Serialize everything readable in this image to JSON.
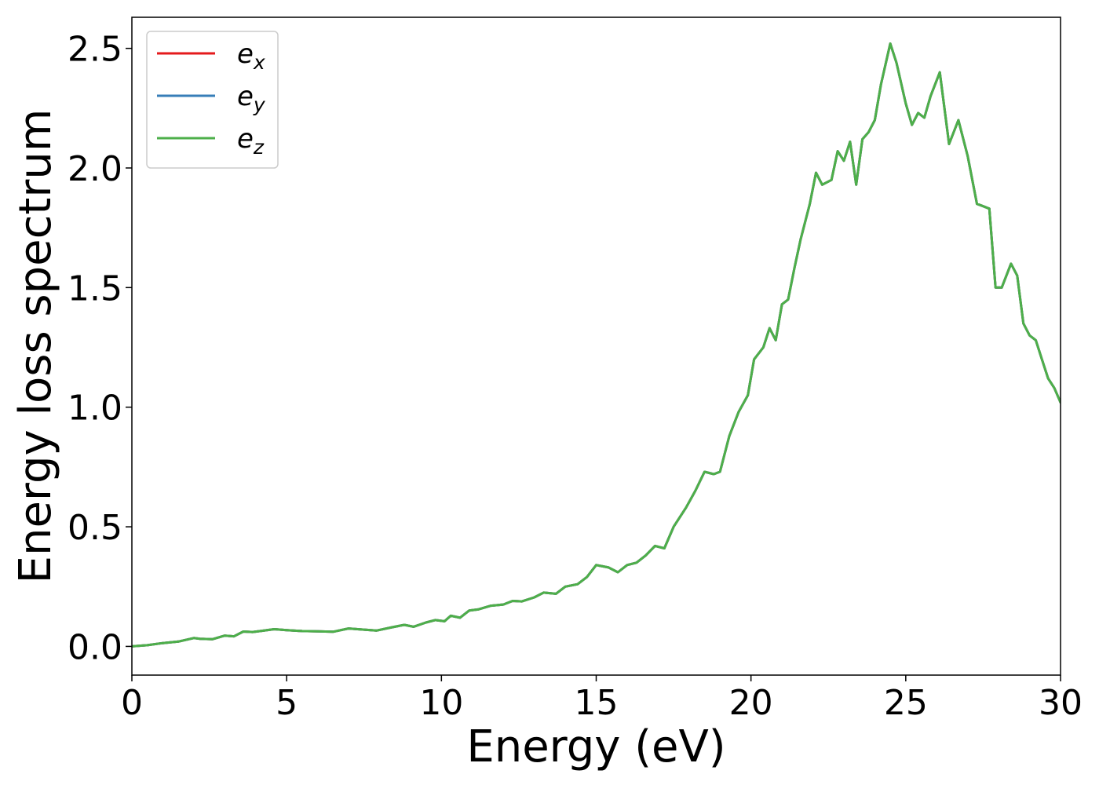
{
  "chart_data": {
    "type": "line",
    "title": "",
    "xlabel": "Energy (eV)",
    "ylabel": "Energy loss spectrum",
    "xlim": [
      0,
      30
    ],
    "ylim": [
      -0.12,
      2.63
    ],
    "xticks": [
      0,
      5,
      10,
      15,
      20,
      25,
      30
    ],
    "xtick_labels": [
      "0",
      "5",
      "10",
      "15",
      "20",
      "25",
      "30"
    ],
    "yticks": [
      0.0,
      0.5,
      1.0,
      1.5,
      2.0,
      2.5
    ],
    "ytick_labels": [
      "0.0",
      "0.5",
      "1.0",
      "1.5",
      "2.0",
      "2.5"
    ],
    "grid": false,
    "legend": {
      "placement": "top-left",
      "entries": [
        {
          "base": "e",
          "sub": "x",
          "color": "#e41a1c"
        },
        {
          "base": "e",
          "sub": "y",
          "color": "#377eb8"
        },
        {
          "base": "e",
          "sub": "z",
          "color": "#4daf4a"
        }
      ]
    },
    "x": [
      0.0,
      0.5,
      1.0,
      1.5,
      2.0,
      2.2,
      2.6,
      3.0,
      3.3,
      3.6,
      3.9,
      4.2,
      4.6,
      5.0,
      5.5,
      6.0,
      6.5,
      7.0,
      7.5,
      7.9,
      8.4,
      8.8,
      9.1,
      9.5,
      9.8,
      10.1,
      10.3,
      10.6,
      10.9,
      11.2,
      11.6,
      12.0,
      12.3,
      12.6,
      13.0,
      13.3,
      13.7,
      14.0,
      14.4,
      14.7,
      15.0,
      15.4,
      15.7,
      16.0,
      16.3,
      16.6,
      16.9,
      17.2,
      17.5,
      17.9,
      18.2,
      18.5,
      18.8,
      19.0,
      19.3,
      19.6,
      19.9,
      20.1,
      20.4,
      20.6,
      20.8,
      21.0,
      21.2,
      21.4,
      21.6,
      21.9,
      22.1,
      22.3,
      22.6,
      22.8,
      23.0,
      23.2,
      23.4,
      23.6,
      23.8,
      24.0,
      24.2,
      24.5,
      24.7,
      25.0,
      25.2,
      25.4,
      25.6,
      25.8,
      26.1,
      26.4,
      26.7,
      27.0,
      27.3,
      27.5,
      27.7,
      27.9,
      28.1,
      28.4,
      28.6,
      28.8,
      29.0,
      29.2,
      29.4,
      29.6,
      29.8,
      30.0
    ],
    "series": [
      {
        "name": "e_x",
        "color": "#e41a1c",
        "values": [
          0.0,
          0.005,
          0.014,
          0.02,
          0.035,
          0.032,
          0.03,
          0.045,
          0.042,
          0.062,
          0.06,
          0.065,
          0.072,
          0.068,
          0.064,
          0.063,
          0.061,
          0.075,
          0.07,
          0.066,
          0.08,
          0.09,
          0.082,
          0.1,
          0.11,
          0.105,
          0.128,
          0.12,
          0.15,
          0.155,
          0.17,
          0.175,
          0.19,
          0.188,
          0.205,
          0.225,
          0.22,
          0.25,
          0.26,
          0.29,
          0.34,
          0.33,
          0.31,
          0.34,
          0.35,
          0.38,
          0.42,
          0.41,
          0.5,
          0.58,
          0.65,
          0.73,
          0.72,
          0.73,
          0.88,
          0.98,
          1.05,
          1.2,
          1.25,
          1.33,
          1.28,
          1.43,
          1.45,
          1.58,
          1.7,
          1.85,
          1.98,
          1.93,
          1.95,
          2.07,
          2.03,
          2.11,
          1.93,
          2.12,
          2.15,
          2.2,
          2.35,
          2.52,
          2.44,
          2.27,
          2.18,
          2.23,
          2.21,
          2.3,
          2.4,
          2.1,
          2.2,
          2.05,
          1.85,
          1.84,
          1.83,
          1.5,
          1.5,
          1.6,
          1.55,
          1.35,
          1.3,
          1.28,
          1.2,
          1.12,
          1.08,
          1.02
        ]
      },
      {
        "name": "e_y",
        "color": "#377eb8",
        "values": [
          0.0,
          0.005,
          0.014,
          0.02,
          0.035,
          0.032,
          0.03,
          0.045,
          0.042,
          0.062,
          0.06,
          0.065,
          0.072,
          0.068,
          0.064,
          0.063,
          0.061,
          0.075,
          0.07,
          0.066,
          0.08,
          0.09,
          0.082,
          0.1,
          0.11,
          0.105,
          0.128,
          0.12,
          0.15,
          0.155,
          0.17,
          0.175,
          0.19,
          0.188,
          0.205,
          0.225,
          0.22,
          0.25,
          0.26,
          0.29,
          0.34,
          0.33,
          0.31,
          0.34,
          0.35,
          0.38,
          0.42,
          0.41,
          0.5,
          0.58,
          0.65,
          0.73,
          0.72,
          0.73,
          0.88,
          0.98,
          1.05,
          1.2,
          1.25,
          1.33,
          1.28,
          1.43,
          1.45,
          1.58,
          1.7,
          1.85,
          1.98,
          1.93,
          1.95,
          2.07,
          2.03,
          2.11,
          1.93,
          2.12,
          2.15,
          2.2,
          2.35,
          2.52,
          2.44,
          2.27,
          2.18,
          2.23,
          2.21,
          2.3,
          2.4,
          2.1,
          2.2,
          2.05,
          1.85,
          1.84,
          1.83,
          1.5,
          1.5,
          1.6,
          1.55,
          1.35,
          1.3,
          1.28,
          1.2,
          1.12,
          1.08,
          1.02
        ]
      },
      {
        "name": "e_z",
        "color": "#4daf4a",
        "values": [
          0.0,
          0.005,
          0.014,
          0.02,
          0.035,
          0.032,
          0.03,
          0.045,
          0.042,
          0.062,
          0.06,
          0.065,
          0.072,
          0.068,
          0.064,
          0.063,
          0.061,
          0.075,
          0.07,
          0.066,
          0.08,
          0.09,
          0.082,
          0.1,
          0.11,
          0.105,
          0.128,
          0.12,
          0.15,
          0.155,
          0.17,
          0.175,
          0.19,
          0.188,
          0.205,
          0.225,
          0.22,
          0.25,
          0.26,
          0.29,
          0.34,
          0.33,
          0.31,
          0.34,
          0.35,
          0.38,
          0.42,
          0.41,
          0.5,
          0.58,
          0.65,
          0.73,
          0.72,
          0.73,
          0.88,
          0.98,
          1.05,
          1.2,
          1.25,
          1.33,
          1.28,
          1.43,
          1.45,
          1.58,
          1.7,
          1.85,
          1.98,
          1.93,
          1.95,
          2.07,
          2.03,
          2.11,
          1.93,
          2.12,
          2.15,
          2.2,
          2.35,
          2.52,
          2.44,
          2.27,
          2.18,
          2.23,
          2.21,
          2.3,
          2.4,
          2.1,
          2.2,
          2.05,
          1.85,
          1.84,
          1.83,
          1.5,
          1.5,
          1.6,
          1.55,
          1.35,
          1.3,
          1.28,
          1.2,
          1.12,
          1.08,
          1.02
        ]
      }
    ]
  }
}
